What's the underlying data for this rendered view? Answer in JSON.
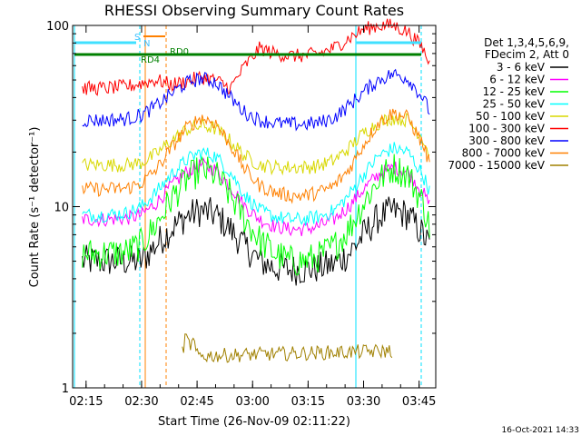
{
  "chart_data": {
    "type": "line",
    "title": "RHESSI Observing Summary Count Rates",
    "xlabel": "Start Time (26-Nov-09 02:11:22)",
    "ylabel": "Count Rate (s⁻¹ detector⁻¹)",
    "yscale": "log",
    "ylim": [
      1,
      100
    ],
    "xlim": [
      "02:11:22",
      "03:49:30"
    ],
    "x_ticks": [
      "02:15",
      "02:30",
      "02:45",
      "03:00",
      "03:15",
      "03:30",
      "03:45"
    ],
    "y_ticks": [
      "1",
      "10",
      "100"
    ],
    "legend_header": [
      "Det 1,3,4,5,6,9,",
      "FDecim 2, Att 0"
    ],
    "legend_position": "right",
    "timestamp": "16-Oct-2021 14:33",
    "series": [
      {
        "name": "3 - 6 keV",
        "color": "#000000",
        "x": [
          "02:14",
          "02:20",
          "02:26",
          "02:30",
          "02:34",
          "02:38",
          "02:42",
          "02:46",
          "02:50",
          "02:54",
          "02:58",
          "03:02",
          "03:06",
          "03:10",
          "03:14",
          "03:18",
          "03:22",
          "03:26",
          "03:30",
          "03:34",
          "03:38",
          "03:42",
          "03:46",
          "03:48"
        ],
        "y": [
          5.0,
          5.0,
          5.0,
          5.0,
          6.2,
          7.5,
          8.8,
          9.5,
          9.0,
          7.5,
          6.0,
          5.0,
          4.6,
          4.5,
          4.5,
          4.6,
          4.8,
          5.5,
          7.0,
          8.7,
          9.5,
          9.0,
          7.0,
          6.0
        ]
      },
      {
        "name": "6 - 12 keV",
        "color": "#ff00ff",
        "x": [
          "02:14",
          "02:20",
          "02:26",
          "02:30",
          "02:34",
          "02:38",
          "02:42",
          "02:46",
          "02:50",
          "02:54",
          "02:58",
          "03:02",
          "03:06",
          "03:10",
          "03:14",
          "03:18",
          "03:22",
          "03:26",
          "03:30",
          "03:34",
          "03:38",
          "03:42",
          "03:46",
          "03:48"
        ],
        "y": [
          8.5,
          8.5,
          8.6,
          9.0,
          10.5,
          13.0,
          15.5,
          17.0,
          16.0,
          13.0,
          10.0,
          8.5,
          7.8,
          7.5,
          7.5,
          7.8,
          8.5,
          10.0,
          12.5,
          15.0,
          16.5,
          15.5,
          12.0,
          10.0
        ]
      },
      {
        "name": "12 - 25 keV",
        "color": "#00ff00",
        "x": [
          "02:14",
          "02:20",
          "02:26",
          "02:30",
          "02:34",
          "02:38",
          "02:42",
          "02:46",
          "02:50",
          "02:54",
          "02:58",
          "03:02",
          "03:06",
          "03:10",
          "03:14",
          "03:18",
          "03:22",
          "03:26",
          "03:30",
          "03:34",
          "03:38",
          "03:42",
          "03:46",
          "03:48"
        ],
        "y": [
          5.5,
          5.5,
          5.6,
          6.2,
          8.0,
          11.0,
          14.0,
          16.0,
          15.0,
          11.5,
          8.5,
          6.5,
          5.5,
          5.0,
          5.0,
          5.3,
          6.0,
          7.5,
          10.5,
          14.0,
          16.5,
          15.0,
          10.5,
          7.5
        ]
      },
      {
        "name": "25 - 50 keV",
        "color": "#00ffff",
        "x": [
          "02:14",
          "02:20",
          "02:26",
          "02:30",
          "02:34",
          "02:38",
          "02:42",
          "02:46",
          "02:50",
          "02:54",
          "02:58",
          "03:02",
          "03:06",
          "03:10",
          "03:14",
          "03:18",
          "03:22",
          "03:26",
          "03:30",
          "03:34",
          "03:38",
          "03:42",
          "03:46",
          "03:48"
        ],
        "y": [
          9.0,
          9.0,
          9.2,
          10.0,
          12.0,
          15.0,
          18.0,
          20.0,
          19.0,
          15.5,
          11.5,
          9.5,
          8.8,
          8.5,
          8.5,
          8.8,
          9.5,
          11.5,
          15.0,
          19.0,
          21.0,
          20.0,
          15.0,
          12.0
        ]
      },
      {
        "name": "50 - 100 keV",
        "color": "#d8d800",
        "x": [
          "02:14",
          "02:20",
          "02:26",
          "02:30",
          "02:34",
          "02:38",
          "02:42",
          "02:46",
          "02:50",
          "02:54",
          "02:58",
          "03:02",
          "03:06",
          "03:10",
          "03:14",
          "03:18",
          "03:22",
          "03:26",
          "03:30",
          "03:34",
          "03:38",
          "03:42",
          "03:46",
          "03:48"
        ],
        "y": [
          17.0,
          17.0,
          17.0,
          17.5,
          19.5,
          23.0,
          26.5,
          28.0,
          27.0,
          23.0,
          19.0,
          17.0,
          16.5,
          16.5,
          16.5,
          16.8,
          18.0,
          21.0,
          25.5,
          29.0,
          31.0,
          30.0,
          24.0,
          19.0
        ]
      },
      {
        "name": "100 - 300 keV",
        "color": "#ff0000",
        "x": [
          "02:14",
          "02:20",
          "02:26",
          "02:30",
          "02:34",
          "02:38",
          "02:42",
          "02:46",
          "02:50",
          "02:54",
          "02:58",
          "03:02",
          "03:06",
          "03:10",
          "03:14",
          "03:18",
          "03:22",
          "03:26",
          "03:30",
          "03:34",
          "03:38",
          "03:42",
          "03:46",
          "03:48"
        ],
        "y": [
          45.0,
          45.0,
          46.0,
          48.0,
          50.0,
          47.0,
          49.0,
          52.0,
          50.0,
          45.0,
          60.0,
          75.0,
          70.0,
          68.0,
          68.0,
          70.0,
          75.0,
          85.0,
          95.0,
          100.0,
          100.0,
          92.0,
          75.0,
          60.0
        ]
      },
      {
        "name": "300 - 800 keV",
        "color": "#0000ff",
        "x": [
          "02:14",
          "02:20",
          "02:26",
          "02:30",
          "02:34",
          "02:38",
          "02:42",
          "02:46",
          "02:50",
          "02:54",
          "02:58",
          "03:02",
          "03:06",
          "03:10",
          "03:14",
          "03:18",
          "03:22",
          "03:26",
          "03:30",
          "03:34",
          "03:38",
          "03:42",
          "03:46",
          "03:48"
        ],
        "y": [
          30.0,
          30.0,
          30.5,
          32.0,
          36.0,
          42.0,
          48.0,
          51.0,
          49.0,
          40.0,
          33.0,
          30.0,
          29.0,
          28.5,
          28.5,
          29.0,
          31.0,
          36.0,
          43.0,
          50.0,
          54.0,
          51.0,
          40.0,
          33.0
        ]
      },
      {
        "name": "800 - 7000 keV",
        "color": "#ff8000",
        "x": [
          "02:14",
          "02:20",
          "02:26",
          "02:30",
          "02:34",
          "02:38",
          "02:42",
          "02:46",
          "02:50",
          "02:54",
          "02:58",
          "03:02",
          "03:06",
          "03:10",
          "03:14",
          "03:18",
          "03:22",
          "03:26",
          "03:30",
          "03:34",
          "03:38",
          "03:42",
          "03:46",
          "03:48"
        ],
        "y": [
          12.5,
          12.5,
          12.6,
          13.5,
          16.0,
          21.0,
          27.0,
          31.0,
          29.0,
          22.0,
          16.0,
          13.0,
          12.0,
          11.5,
          11.5,
          12.0,
          13.0,
          16.0,
          22.0,
          29.0,
          33.0,
          31.0,
          22.0,
          17.0
        ]
      },
      {
        "name": "7000 - 15000 keV",
        "color": "#a08000",
        "x": [
          "02:41",
          "02:42",
          "02:43",
          "02:44",
          "02:45",
          "03:38"
        ],
        "y": [
          1.6,
          1.9,
          1.7,
          1.8,
          1.5,
          1.6
        ]
      }
    ],
    "annotations": [
      {
        "label": "S",
        "color": "#40c0ff"
      },
      {
        "label": "N",
        "color": "#40c0ff"
      },
      {
        "label": "RD0",
        "color": "#008000"
      },
      {
        "label": "RD4",
        "color": "#008000"
      }
    ]
  }
}
